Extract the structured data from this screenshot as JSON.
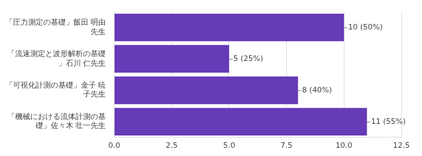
{
  "chart_data": {
    "type": "bar",
    "orientation": "horizontal",
    "categories": [
      "「圧力測定の基礎」飯田 明由先生",
      "「流速測定と波形解析の基礎」石川 仁先生",
      "「可視化計測の基礎」金子 暁子先生",
      "「機械における流体計測の基礎」佐々木 壮一先生"
    ],
    "values": [
      10,
      5,
      8,
      11
    ],
    "value_labels": [
      "10 (50%)",
      "5 (25%)",
      "8 (40%)",
      "11 (55%)"
    ],
    "color": "#673ab7",
    "xlim": [
      0,
      12.5
    ],
    "xticks": [
      {
        "value": 0,
        "label": "0.0"
      },
      {
        "value": 2.5,
        "label": "2.5"
      },
      {
        "value": 5,
        "label": "5.0"
      },
      {
        "value": 7.5,
        "label": "7.5"
      },
      {
        "value": 10,
        "label": "10.0"
      },
      {
        "value": 12.5,
        "label": "12.5"
      }
    ],
    "grid": true,
    "data_labels": true
  }
}
